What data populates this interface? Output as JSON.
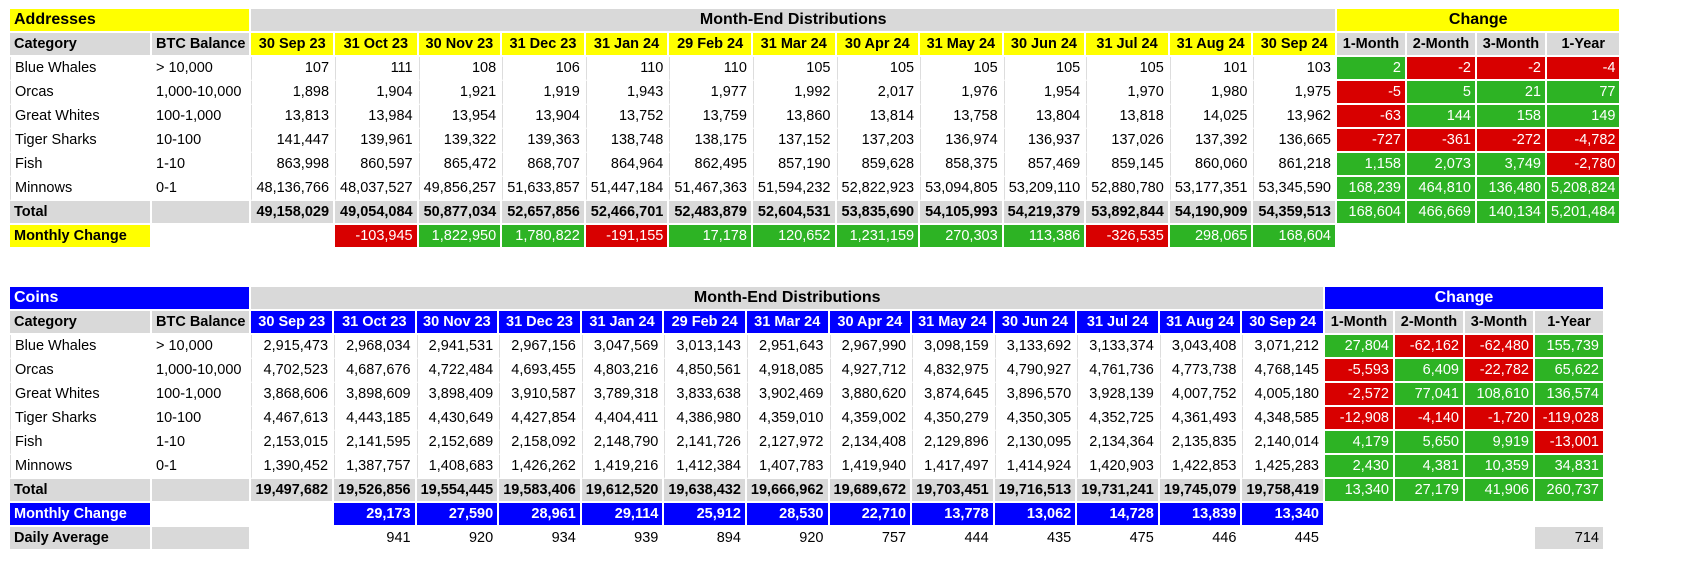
{
  "months": [
    "30 Sep 23",
    "31 Oct 23",
    "30 Nov 23",
    "31 Dec 23",
    "31 Jan 24",
    "29 Feb 24",
    "31 Mar 24",
    "30 Apr 24",
    "31 May 24",
    "30 Jun 24",
    "31 Jul 24",
    "31 Aug 24",
    "30 Sep 24"
  ],
  "changes": [
    "1-Month",
    "2-Month",
    "3-Month",
    "1-Year"
  ],
  "header_category": "Category",
  "header_balance": "BTC Balance",
  "header_distributions": "Month-End Distributions",
  "header_change": "Change",
  "addresses": {
    "title": "Addresses",
    "accent": "#ffff00",
    "rows": [
      {
        "name": "Blue Whales",
        "balance": "> 10,000",
        "values": [
          "107",
          "111",
          "108",
          "106",
          "110",
          "110",
          "105",
          "105",
          "105",
          "105",
          "105",
          "101",
          "103"
        ],
        "changes": [
          "2",
          "-2",
          "-2",
          "-4"
        ]
      },
      {
        "name": "Orcas",
        "balance": "1,000-10,000",
        "values": [
          "1,898",
          "1,904",
          "1,921",
          "1,919",
          "1,943",
          "1,977",
          "1,992",
          "2,017",
          "1,976",
          "1,954",
          "1,970",
          "1,980",
          "1,975"
        ],
        "changes": [
          "-5",
          "5",
          "21",
          "77"
        ]
      },
      {
        "name": "Great Whites",
        "balance": "100-1,000",
        "values": [
          "13,813",
          "13,984",
          "13,954",
          "13,904",
          "13,752",
          "13,759",
          "13,860",
          "13,814",
          "13,758",
          "13,804",
          "13,818",
          "14,025",
          "13,962"
        ],
        "changes": [
          "-63",
          "144",
          "158",
          "149"
        ]
      },
      {
        "name": "Tiger Sharks",
        "balance": "10-100",
        "values": [
          "141,447",
          "139,961",
          "139,322",
          "139,363",
          "138,748",
          "138,175",
          "137,152",
          "137,203",
          "136,974",
          "136,937",
          "137,026",
          "137,392",
          "136,665"
        ],
        "changes": [
          "-727",
          "-361",
          "-272",
          "-4,782"
        ]
      },
      {
        "name": "Fish",
        "balance": "1-10",
        "values": [
          "863,998",
          "860,597",
          "865,472",
          "868,707",
          "864,964",
          "862,495",
          "857,190",
          "859,628",
          "858,375",
          "857,469",
          "859,145",
          "860,060",
          "861,218"
        ],
        "changes": [
          "1,158",
          "2,073",
          "3,749",
          "-2,780"
        ]
      },
      {
        "name": "Minnows",
        "balance": "0-1",
        "values": [
          "48,136,766",
          "48,037,527",
          "49,856,257",
          "51,633,857",
          "51,447,184",
          "51,467,363",
          "51,594,232",
          "52,822,923",
          "53,094,805",
          "53,209,110",
          "52,880,780",
          "53,177,351",
          "53,345,590"
        ],
        "changes": [
          "168,239",
          "464,810",
          "136,480",
          "5,208,824"
        ]
      }
    ],
    "total": {
      "label": "Total",
      "values": [
        "49,158,029",
        "49,054,084",
        "50,877,034",
        "52,657,856",
        "52,466,701",
        "52,483,879",
        "52,604,531",
        "53,835,690",
        "54,105,993",
        "54,219,379",
        "53,892,844",
        "54,190,909",
        "54,359,513"
      ],
      "changes": [
        "168,604",
        "466,669",
        "140,134",
        "5,201,484"
      ]
    },
    "monthly_change": {
      "label": "Monthly Change",
      "values": [
        "",
        "-103,945",
        "1,822,950",
        "1,780,822",
        "-191,155",
        "17,178",
        "120,652",
        "1,231,159",
        "270,303",
        "113,386",
        "-326,535",
        "298,065",
        "168,604"
      ]
    }
  },
  "coins": {
    "title": "Coins",
    "accent": "#0000ff",
    "rows": [
      {
        "name": "Blue Whales",
        "balance": "> 10,000",
        "values": [
          "2,915,473",
          "2,968,034",
          "2,941,531",
          "2,967,156",
          "3,047,569",
          "3,013,143",
          "2,951,643",
          "2,967,990",
          "3,098,159",
          "3,133,692",
          "3,133,374",
          "3,043,408",
          "3,071,212"
        ],
        "changes": [
          "27,804",
          "-62,162",
          "-62,480",
          "155,739"
        ]
      },
      {
        "name": "Orcas",
        "balance": "1,000-10,000",
        "values": [
          "4,702,523",
          "4,687,676",
          "4,722,484",
          "4,693,455",
          "4,803,216",
          "4,850,561",
          "4,918,085",
          "4,927,712",
          "4,832,975",
          "4,790,927",
          "4,761,736",
          "4,773,738",
          "4,768,145"
        ],
        "changes": [
          "-5,593",
          "6,409",
          "-22,782",
          "65,622"
        ]
      },
      {
        "name": "Great Whites",
        "balance": "100-1,000",
        "values": [
          "3,868,606",
          "3,898,609",
          "3,898,409",
          "3,910,587",
          "3,789,318",
          "3,833,638",
          "3,902,469",
          "3,880,620",
          "3,874,645",
          "3,896,570",
          "3,928,139",
          "4,007,752",
          "4,005,180"
        ],
        "changes": [
          "-2,572",
          "77,041",
          "108,610",
          "136,574"
        ]
      },
      {
        "name": "Tiger Sharks",
        "balance": "10-100",
        "values": [
          "4,467,613",
          "4,443,185",
          "4,430,649",
          "4,427,854",
          "4,404,411",
          "4,386,980",
          "4,359,010",
          "4,359,002",
          "4,350,279",
          "4,350,305",
          "4,352,725",
          "4,361,493",
          "4,348,585"
        ],
        "changes": [
          "-12,908",
          "-4,140",
          "-1,720",
          "-119,028"
        ]
      },
      {
        "name": "Fish",
        "balance": "1-10",
        "values": [
          "2,153,015",
          "2,141,595",
          "2,152,689",
          "2,158,092",
          "2,148,790",
          "2,141,726",
          "2,127,972",
          "2,134,408",
          "2,129,896",
          "2,130,095",
          "2,134,364",
          "2,135,835",
          "2,140,014"
        ],
        "changes": [
          "4,179",
          "5,650",
          "9,919",
          "-13,001"
        ]
      },
      {
        "name": "Minnows",
        "balance": "0-1",
        "values": [
          "1,390,452",
          "1,387,757",
          "1,408,683",
          "1,426,262",
          "1,419,216",
          "1,412,384",
          "1,407,783",
          "1,419,940",
          "1,417,497",
          "1,414,924",
          "1,420,903",
          "1,422,853",
          "1,425,283"
        ],
        "changes": [
          "2,430",
          "4,381",
          "10,359",
          "34,831"
        ]
      }
    ],
    "total": {
      "label": "Total",
      "values": [
        "19,497,682",
        "19,526,856",
        "19,554,445",
        "19,583,406",
        "19,612,520",
        "19,638,432",
        "19,666,962",
        "19,689,672",
        "19,703,451",
        "19,716,513",
        "19,731,241",
        "19,745,079",
        "19,758,419"
      ],
      "changes": [
        "13,340",
        "27,179",
        "41,906",
        "260,737"
      ]
    },
    "monthly_change": {
      "label": "Monthly Change",
      "values": [
        "",
        "29,173",
        "27,590",
        "28,961",
        "29,114",
        "25,912",
        "28,530",
        "22,710",
        "13,778",
        "13,062",
        "14,728",
        "13,839",
        "13,340"
      ]
    },
    "daily_average": {
      "label": "Daily Average",
      "values": [
        "",
        "941",
        "920",
        "934",
        "939",
        "894",
        "920",
        "757",
        "444",
        "435",
        "475",
        "446",
        "445"
      ],
      "change_1y": "714"
    }
  }
}
